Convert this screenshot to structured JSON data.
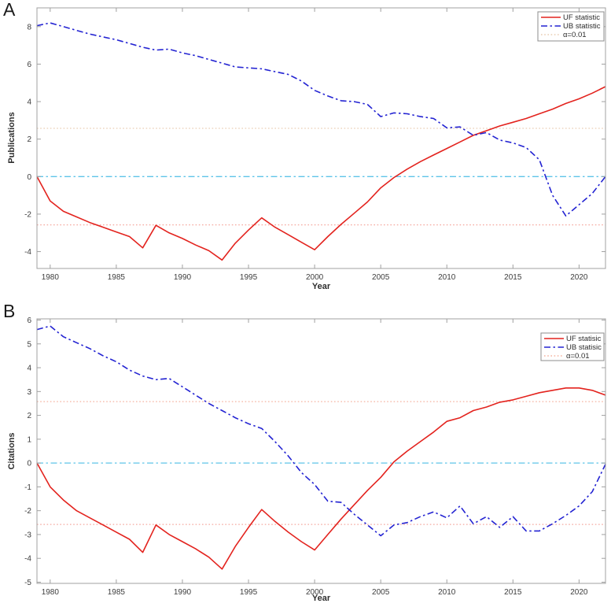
{
  "chart_data": [
    {
      "type": "line",
      "panel_label": "A",
      "xlabel": "Year",
      "ylabel": "Publications",
      "xlim": [
        1979,
        2022
      ],
      "ylim": [
        -4.9,
        9.0
      ],
      "xticks": [
        1980,
        1985,
        1990,
        1995,
        2000,
        2005,
        2010,
        2015,
        2020
      ],
      "yticks": [
        -4,
        -2,
        0,
        2,
        4,
        6,
        8
      ],
      "grid": false,
      "legend": {
        "position": "top-right",
        "entries": [
          {
            "label": "UF statistic",
            "color": "#e3231e",
            "style": "solid"
          },
          {
            "label": "UB statistic",
            "color": "#2323d2",
            "style": "dash-dot"
          },
          {
            "label": "α=0.01",
            "color": "#e9cdb3",
            "style": "dotted"
          }
        ]
      },
      "reference_lines": [
        {
          "label": "α=0.01 upper bound",
          "y": 2.576,
          "color": "#e9cdb3",
          "style": "dotted"
        },
        {
          "label": "α=0.01 lower bound",
          "y": -2.576,
          "color": "#f5a89f",
          "style": "dotted"
        },
        {
          "label": "zero line",
          "y": 0,
          "color": "#5fc4e9",
          "style": "dash-dot"
        }
      ],
      "x": [
        1979,
        1980,
        1981,
        1982,
        1983,
        1984,
        1985,
        1986,
        1987,
        1988,
        1989,
        1990,
        1991,
        1992,
        1993,
        1994,
        1995,
        1996,
        1997,
        1998,
        1999,
        2000,
        2001,
        2002,
        2003,
        2004,
        2005,
        2006,
        2007,
        2008,
        2009,
        2010,
        2011,
        2012,
        2013,
        2014,
        2015,
        2016,
        2017,
        2018,
        2019,
        2020,
        2021,
        2022
      ],
      "series": [
        {
          "name": "UF statistic",
          "color": "#e3231e",
          "style": "solid",
          "values": [
            0,
            -1.3,
            -1.85,
            -2.15,
            -2.45,
            -2.7,
            -2.95,
            -3.2,
            -3.8,
            -2.6,
            -3.0,
            -3.3,
            -3.65,
            -3.95,
            -4.45,
            -3.55,
            -2.85,
            -2.2,
            -2.7,
            -3.1,
            -3.5,
            -3.9,
            -3.2,
            -2.55,
            -1.95,
            -1.35,
            -0.6,
            -0.05,
            0.4,
            0.8,
            1.15,
            1.5,
            1.85,
            2.2,
            2.45,
            2.7,
            2.9,
            3.1,
            3.35,
            3.6,
            3.9,
            4.15,
            4.45,
            4.8
          ]
        },
        {
          "name": "UB statistic",
          "color": "#2323d2",
          "style": "dash-dot",
          "values": [
            8.05,
            8.2,
            8.0,
            7.8,
            7.6,
            7.45,
            7.3,
            7.1,
            6.9,
            6.75,
            6.8,
            6.6,
            6.45,
            6.25,
            6.05,
            5.85,
            5.8,
            5.75,
            5.6,
            5.45,
            5.1,
            4.6,
            4.3,
            4.05,
            4.0,
            3.85,
            3.2,
            3.4,
            3.35,
            3.2,
            3.1,
            2.6,
            2.65,
            2.2,
            2.35,
            1.95,
            1.8,
            1.55,
            0.9,
            -1.0,
            -2.1,
            -1.5,
            -0.9,
            0.0
          ]
        }
      ]
    },
    {
      "type": "line",
      "panel_label": "B",
      "xlabel": "Year",
      "ylabel": "Citations",
      "xlim": [
        1979,
        2022
      ],
      "ylim": [
        -5.05,
        6.05
      ],
      "xticks": [
        1980,
        1985,
        1990,
        1995,
        2000,
        2005,
        2010,
        2015,
        2020
      ],
      "yticks": [
        -5,
        -4,
        -3,
        -2,
        -1,
        0,
        1,
        2,
        3,
        4,
        5,
        6
      ],
      "grid": false,
      "legend": {
        "position": "top-right",
        "entries": [
          {
            "label": "UF statisic",
            "color": "#e3231e",
            "style": "solid"
          },
          {
            "label": "UB statisic",
            "color": "#2323d2",
            "style": "dash-dot"
          },
          {
            "label": "α=0.01",
            "color": "#f5b3a0",
            "style": "dotted"
          }
        ]
      },
      "reference_lines": [
        {
          "label": "α=0.01 upper bound",
          "y": 2.576,
          "color": "#f5b3a0",
          "style": "dotted"
        },
        {
          "label": "α=0.01 lower bound",
          "y": -2.576,
          "color": "#f5a89f",
          "style": "dotted"
        },
        {
          "label": "zero line",
          "y": 0,
          "color": "#5fc4e9",
          "style": "dash-dot"
        }
      ],
      "x": [
        1979,
        1980,
        1981,
        1982,
        1983,
        1984,
        1985,
        1986,
        1987,
        1988,
        1989,
        1990,
        1991,
        1992,
        1993,
        1994,
        1995,
        1996,
        1997,
        1998,
        1999,
        2000,
        2001,
        2002,
        2003,
        2004,
        2005,
        2006,
        2007,
        2008,
        2009,
        2010,
        2011,
        2012,
        2013,
        2014,
        2015,
        2016,
        2017,
        2018,
        2019,
        2020,
        2021,
        2022
      ],
      "series": [
        {
          "name": "UF statisic",
          "color": "#e3231e",
          "style": "solid",
          "values": [
            0,
            -1.0,
            -1.55,
            -2.0,
            -2.3,
            -2.6,
            -2.9,
            -3.2,
            -3.75,
            -2.6,
            -3.0,
            -3.3,
            -3.6,
            -3.95,
            -4.45,
            -3.5,
            -2.7,
            -1.95,
            -2.45,
            -2.9,
            -3.3,
            -3.65,
            -3.0,
            -2.35,
            -1.75,
            -1.15,
            -0.6,
            0.05,
            0.5,
            0.9,
            1.3,
            1.75,
            1.9,
            2.2,
            2.35,
            2.55,
            2.65,
            2.8,
            2.95,
            3.05,
            3.15,
            3.15,
            3.05,
            2.85
          ]
        },
        {
          "name": "UB statisic",
          "color": "#2323d2",
          "style": "dash-dot",
          "values": [
            5.6,
            5.75,
            5.3,
            5.05,
            4.8,
            4.5,
            4.25,
            3.9,
            3.65,
            3.5,
            3.55,
            3.2,
            2.85,
            2.5,
            2.2,
            1.9,
            1.65,
            1.45,
            0.9,
            0.3,
            -0.4,
            -0.9,
            -1.6,
            -1.65,
            -2.15,
            -2.6,
            -3.05,
            -2.6,
            -2.5,
            -2.25,
            -2.05,
            -2.3,
            -1.8,
            -2.55,
            -2.25,
            -2.7,
            -2.25,
            -2.85,
            -2.85,
            -2.55,
            -2.2,
            -1.8,
            -1.2,
            -0.05
          ]
        }
      ]
    }
  ],
  "style": {
    "frame_color": "#a0a0a0",
    "tick_label_color": "#3d3d3d",
    "legend_text_color": "#2b2b2b",
    "background": "#ffffff"
  }
}
